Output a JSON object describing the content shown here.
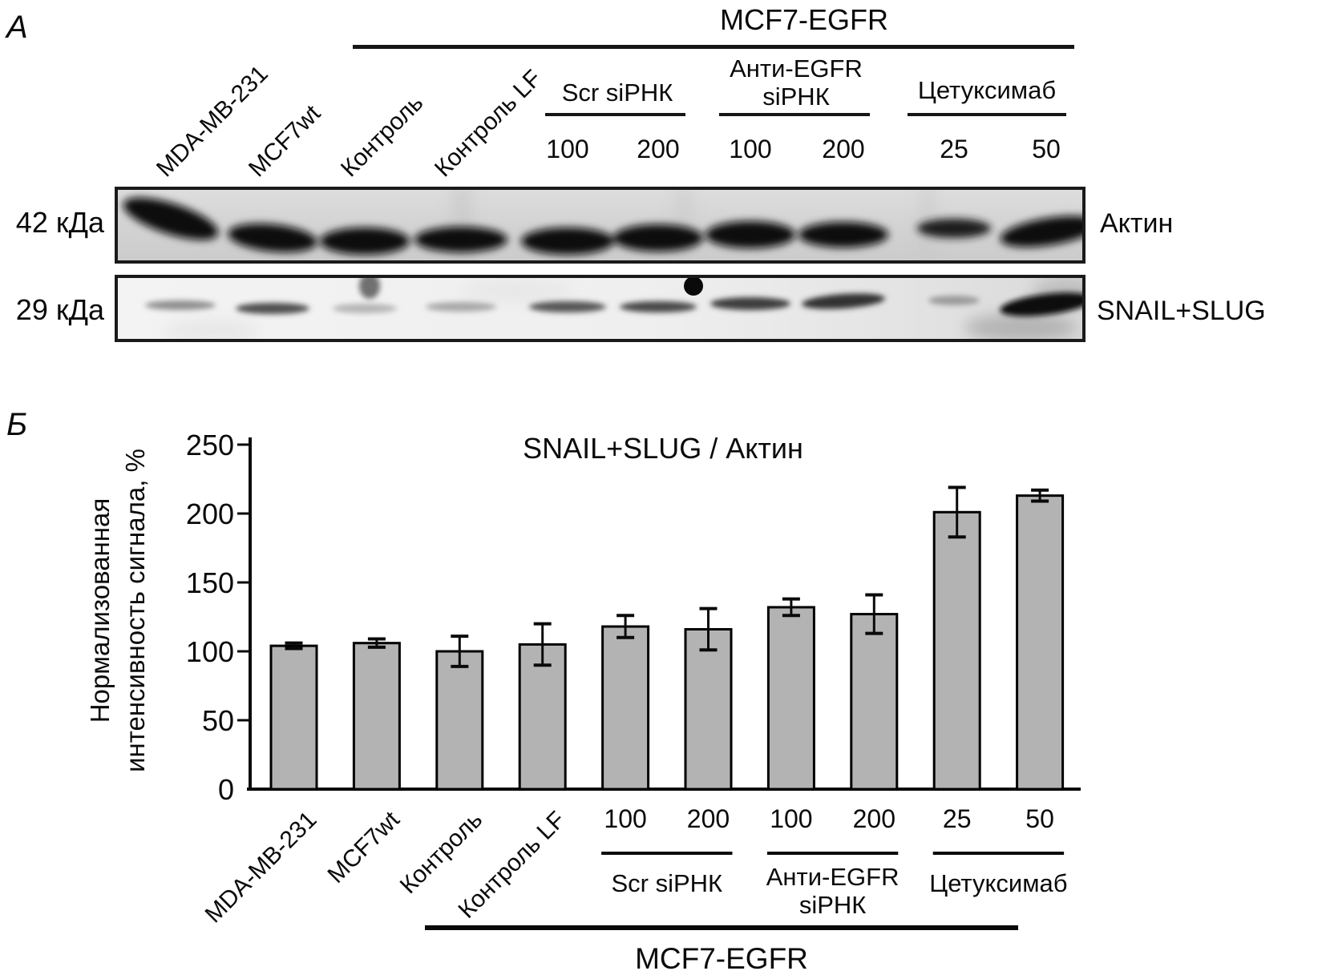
{
  "panel_a": {
    "label": "А",
    "header": "MCF7-EGFR",
    "lane_labels": [
      "MDA-MB-231",
      "MCF7wt",
      "Контроль",
      "Контроль LF"
    ],
    "groups": [
      {
        "lines": [
          "Scr siРНК"
        ],
        "doses": [
          "100",
          "200"
        ]
      },
      {
        "lines": [
          "Анти-EGFR",
          "siРНК"
        ],
        "doses": [
          "100",
          "200"
        ]
      },
      {
        "lines": [
          "Цетуксимаб"
        ],
        "doses": [
          "25",
          "50"
        ]
      }
    ],
    "blots": [
      {
        "marker": "42 кДа",
        "protein": "Актин"
      },
      {
        "marker": "29 кДа",
        "protein": "SNAIL+SLUG"
      }
    ]
  },
  "panel_b": {
    "label": "Б"
  },
  "chart_data": {
    "type": "bar",
    "title": "SNAIL+SLUG / Актин",
    "ylabel_lines": [
      "Нормализованная",
      "интенсивность сигнала, %"
    ],
    "categories": [
      "MDA-MB-231",
      "MCF7wt",
      "Контроль",
      "Контроль LF",
      "100",
      "200",
      "100",
      "200",
      "25",
      "50"
    ],
    "values": [
      104,
      106,
      100,
      105,
      118,
      116,
      132,
      127,
      201,
      213
    ],
    "errors": [
      2,
      3,
      11,
      15,
      8,
      15,
      6,
      14,
      18,
      4
    ],
    "yticks": [
      0,
      50,
      100,
      150,
      200,
      250
    ],
    "ylim": [
      0,
      250
    ],
    "grid": false,
    "legend": false,
    "bar_color": "#b3b3b3",
    "bar_edge_color": "#000000",
    "groups": [
      {
        "lines": [
          "Scr siРНК"
        ],
        "from": 4,
        "to": 5
      },
      {
        "lines": [
          "Анти-EGFR",
          "siРНК"
        ],
        "from": 6,
        "to": 7
      },
      {
        "lines": [
          "Цетуксимаб"
        ],
        "from": 8,
        "to": 9
      }
    ],
    "bottom_label": "MCF7-EGFR"
  }
}
